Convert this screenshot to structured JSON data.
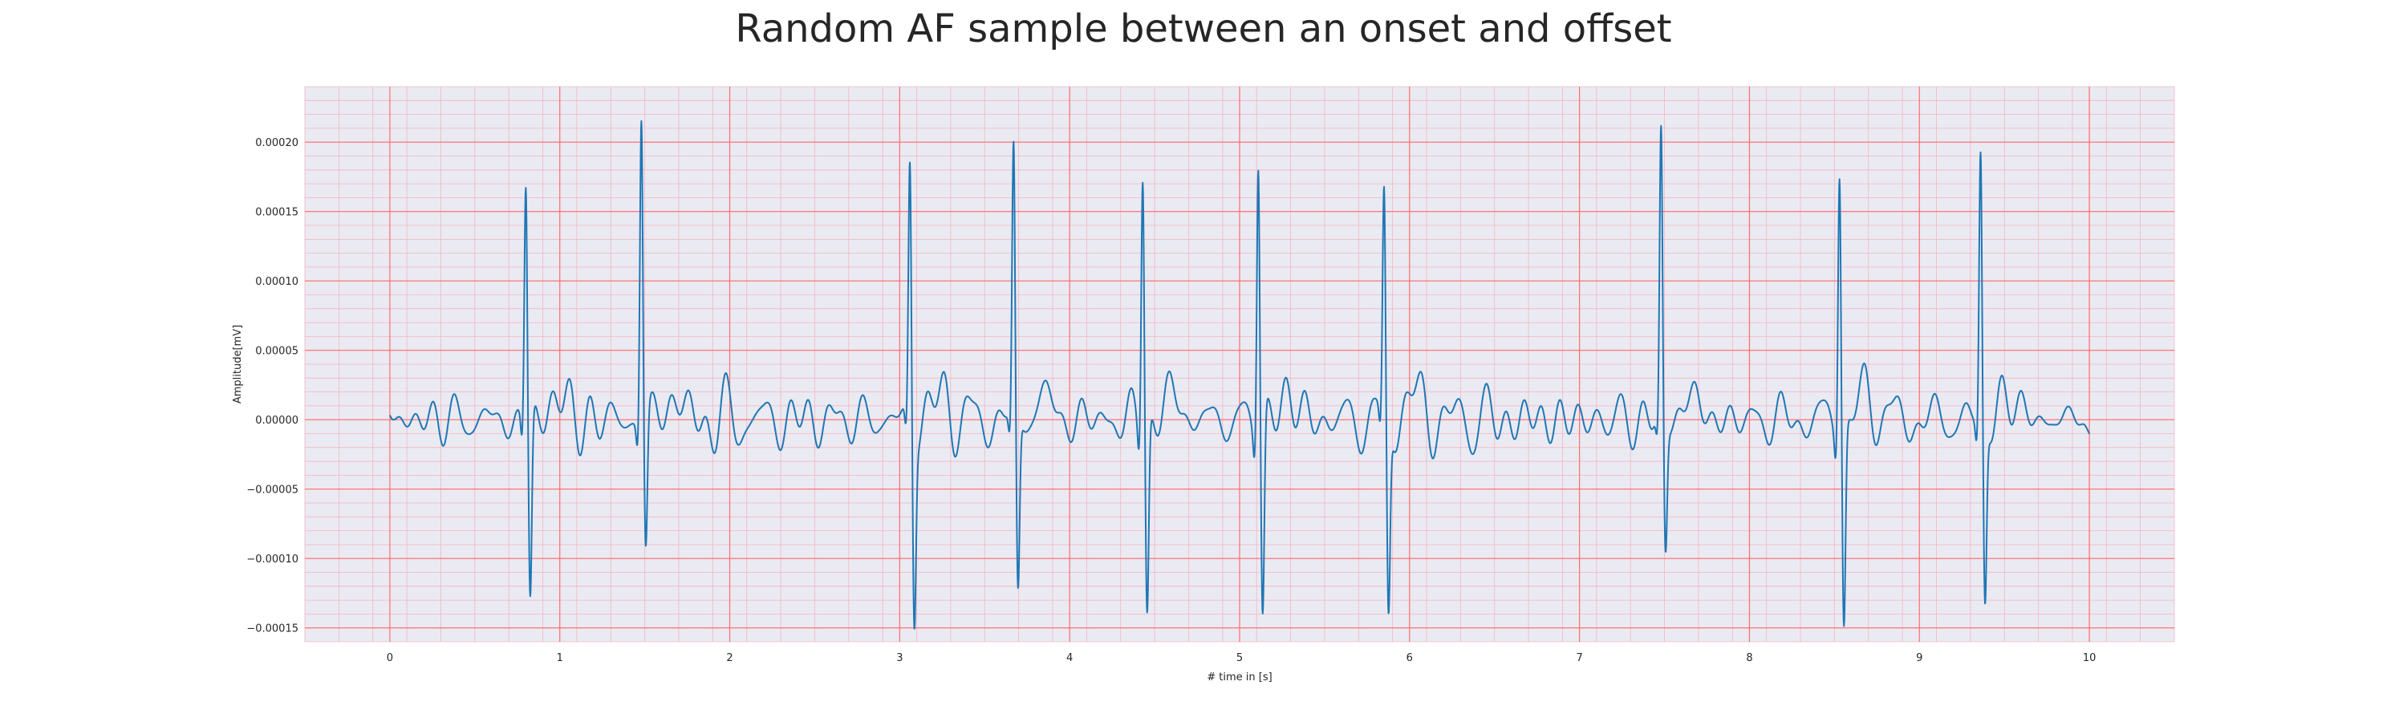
{
  "chart_data": {
    "type": "line",
    "title": "Random AF sample between an onset and offset",
    "xlabel": "# time in [s]",
    "ylabel": "Amplitude[mV]",
    "xlim": [
      -0.5,
      10.5
    ],
    "ylim": [
      -0.00016,
      0.00024
    ],
    "x_ticks": [
      0,
      1,
      2,
      3,
      4,
      5,
      6,
      7,
      8,
      9,
      10
    ],
    "x_tick_labels": [
      "0",
      "1",
      "2",
      "3",
      "4",
      "5",
      "6",
      "7",
      "8",
      "9",
      "10"
    ],
    "y_ticks": [
      -0.00015,
      -0.0001,
      -5e-05,
      0.0,
      5e-05,
      0.0001,
      0.00015,
      0.0002
    ],
    "y_tick_labels": [
      "−0.00015",
      "−0.00010",
      "−0.00005",
      "0.00000",
      "0.00005",
      "0.00010",
      "0.00015",
      "0.00020"
    ],
    "grid": true,
    "grid_major_color": "#ff6b6b",
    "grid_minor_color": "#f3b4c4",
    "plot_background": "#eaeaf2",
    "series": [
      {
        "color": "#1f77b4",
        "line_width": 2,
        "x_start": 0,
        "x_end": 10,
        "beats": [
          {
            "t": 0.8,
            "peak": 0.000172,
            "trough": -0.000135
          },
          {
            "t": 1.48,
            "peak": 0.000224,
            "trough": -9.6e-05
          },
          {
            "t": 3.06,
            "peak": 0.000186,
            "trough": -0.000135
          },
          {
            "t": 3.67,
            "peak": 0.000193,
            "trough": -0.000128
          },
          {
            "t": 4.43,
            "peak": 0.000188,
            "trough": -0.00014
          },
          {
            "t": 5.11,
            "peak": 0.0002,
            "trough": -0.000143
          },
          {
            "t": 5.85,
            "peak": 0.00016,
            "trough": -0.00014
          },
          {
            "t": 7.48,
            "peak": 0.000204,
            "trough": -9.6e-05
          },
          {
            "t": 8.53,
            "peak": 0.000195,
            "trough": -0.000143
          },
          {
            "t": 9.36,
            "peak": 0.000194,
            "trough": -0.000131
          }
        ]
      }
    ]
  }
}
